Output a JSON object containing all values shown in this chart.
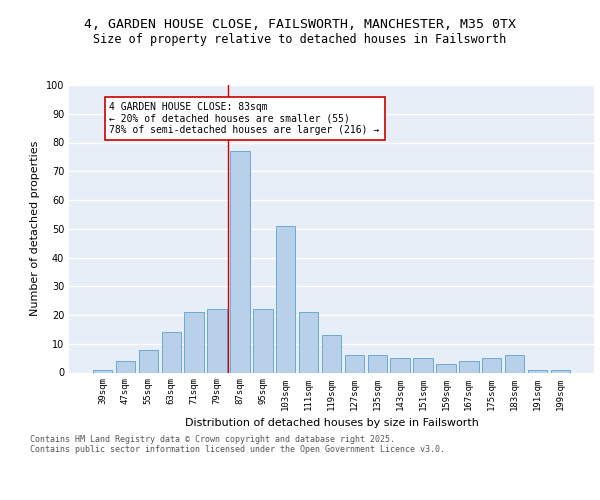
{
  "title_line1": "4, GARDEN HOUSE CLOSE, FAILSWORTH, MANCHESTER, M35 0TX",
  "title_line2": "Size of property relative to detached houses in Failsworth",
  "xlabel": "Distribution of detached houses by size in Failsworth",
  "ylabel": "Number of detached properties",
  "categories": [
    "39sqm",
    "47sqm",
    "55sqm",
    "63sqm",
    "71sqm",
    "79sqm",
    "87sqm",
    "95sqm",
    "103sqm",
    "111sqm",
    "119sqm",
    "127sqm",
    "135sqm",
    "143sqm",
    "151sqm",
    "159sqm",
    "167sqm",
    "175sqm",
    "183sqm",
    "191sqm",
    "199sqm"
  ],
  "values": [
    1,
    4,
    8,
    14,
    21,
    22,
    77,
    22,
    51,
    21,
    13,
    6,
    6,
    5,
    5,
    3,
    4,
    5,
    6,
    1,
    1
  ],
  "bar_color": "#b8d0ea",
  "bar_edge_color": "#6aaad4",
  "annotation_text": "4 GARDEN HOUSE CLOSE: 83sqm\n← 20% of detached houses are smaller (55)\n78% of semi-detached houses are larger (216) →",
  "vline_x": 5.5,
  "vline_color": "#cc0000",
  "annotation_box_color": "#ffffff",
  "annotation_box_edge": "#cc0000",
  "ylim": [
    0,
    100
  ],
  "yticks": [
    0,
    10,
    20,
    30,
    40,
    50,
    60,
    70,
    80,
    90,
    100
  ],
  "background_color": "#e8eef8",
  "grid_color": "#ffffff",
  "footer_text": "Contains HM Land Registry data © Crown copyright and database right 2025.\nContains public sector information licensed under the Open Government Licence v3.0.",
  "title_fontsize": 9.5,
  "subtitle_fontsize": 8.5,
  "annotation_fontsize": 7,
  "tick_fontsize": 6.5,
  "ylabel_fontsize": 8,
  "xlabel_fontsize": 8,
  "footer_fontsize": 6
}
